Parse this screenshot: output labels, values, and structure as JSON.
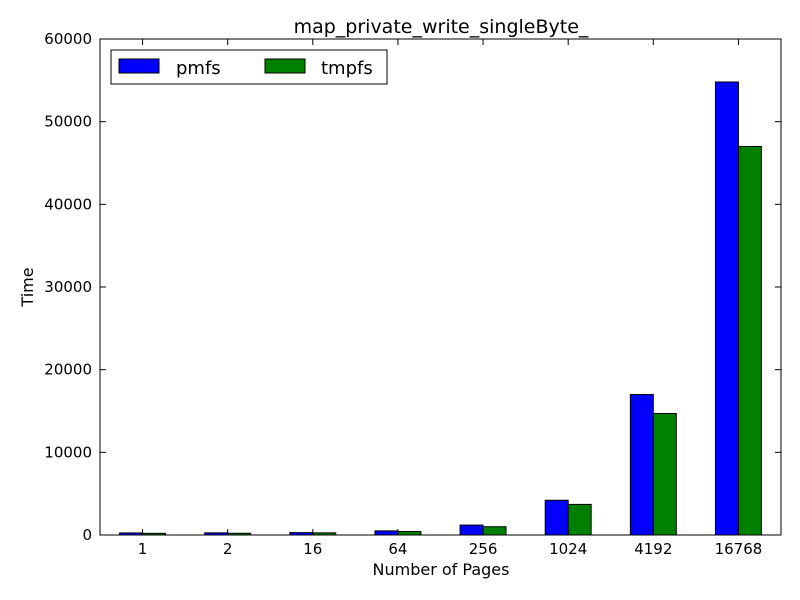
{
  "chart_data": {
    "type": "bar",
    "title": "map_private_write_singleByte_",
    "xlabel": "Number of Pages",
    "ylabel": "Time",
    "categories": [
      "1",
      "2",
      "16",
      "64",
      "256",
      "1024",
      "4192",
      "16768"
    ],
    "ylim": [
      0,
      60000
    ],
    "yticks": [
      0,
      10000,
      20000,
      30000,
      40000,
      50000,
      60000
    ],
    "grid": false,
    "legend_position": "top-left",
    "series": [
      {
        "name": "pmfs",
        "color": "#0000ff",
        "values": [
          250,
          260,
          290,
          500,
          1200,
          4200,
          17000,
          54800
        ]
      },
      {
        "name": "tmpfs",
        "color": "#008000",
        "values": [
          200,
          210,
          260,
          420,
          1000,
          3700,
          14700,
          47000
        ]
      }
    ]
  }
}
